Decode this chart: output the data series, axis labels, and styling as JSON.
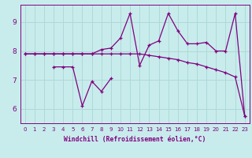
{
  "xlabel": "Windchill (Refroidissement éolien,°C)",
  "x": [
    0,
    1,
    2,
    3,
    4,
    5,
    6,
    7,
    8,
    9,
    10,
    11,
    12,
    13,
    14,
    15,
    16,
    17,
    18,
    19,
    20,
    21,
    22,
    23
  ],
  "line1_x": [
    3,
    4,
    5,
    6,
    7,
    8,
    9
  ],
  "line1_y": [
    7.45,
    7.45,
    7.45,
    6.1,
    6.95,
    6.6,
    7.05
  ],
  "line2": [
    7.9,
    7.9,
    7.9,
    7.9,
    7.9,
    7.9,
    7.9,
    7.9,
    8.05,
    8.1,
    8.45,
    9.3,
    7.5,
    8.2,
    8.35,
    9.3,
    8.7,
    8.25,
    8.25,
    8.3,
    8.0,
    8.0,
    9.3,
    5.75
  ],
  "line3": [
    7.9,
    7.9,
    7.9,
    7.9,
    7.9,
    7.9,
    7.9,
    7.9,
    7.9,
    7.9,
    7.9,
    7.9,
    7.9,
    7.85,
    7.8,
    7.75,
    7.7,
    7.6,
    7.55,
    7.45,
    7.35,
    7.25,
    7.1,
    5.75
  ],
  "ylim": [
    5.5,
    9.6
  ],
  "yticks": [
    6,
    7,
    8,
    9
  ],
  "xticks": [
    0,
    1,
    2,
    3,
    4,
    5,
    6,
    7,
    8,
    9,
    10,
    11,
    12,
    13,
    14,
    15,
    16,
    17,
    18,
    19,
    20,
    21,
    22,
    23
  ],
  "line_color": "#800080",
  "bg_color": "#c8ecec",
  "grid_color": "#b0d8d8",
  "marker": "+"
}
